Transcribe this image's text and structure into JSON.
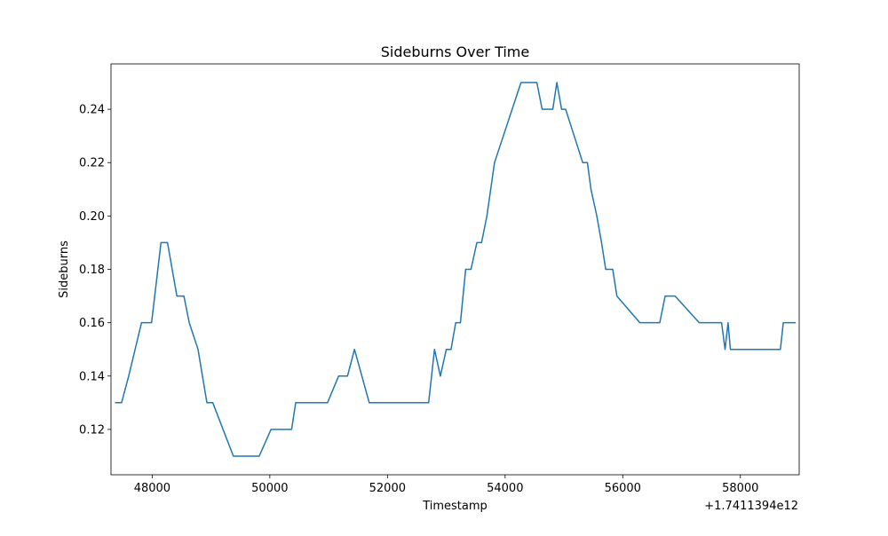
{
  "chart_data": {
    "type": "line",
    "title": "Sideburns Over Time",
    "xlabel": "Timestamp",
    "ylabel": "Sideburns",
    "x_offset_label": "+1.7411394e12",
    "xlim": [
      47300,
      59000
    ],
    "ylim": [
      0.103,
      0.257
    ],
    "x_ticks": [
      48000,
      50000,
      52000,
      54000,
      56000,
      58000
    ],
    "x_tick_labels": [
      "48000",
      "50000",
      "52000",
      "54000",
      "56000",
      "58000"
    ],
    "y_ticks": [
      0.12,
      0.14,
      0.16,
      0.18,
      0.2,
      0.22,
      0.24
    ],
    "y_tick_labels": [
      "0.12",
      "0.14",
      "0.16",
      "0.18",
      "0.20",
      "0.22",
      "0.24"
    ],
    "grid": false,
    "line_color": "#1f77b4",
    "series": [
      {
        "x": [
          47380,
          47480,
          47600,
          47820,
          47990,
          48150,
          48260,
          48420,
          48540,
          48630,
          48780,
          48930,
          49030,
          49380,
          49820,
          50020,
          50370,
          50440,
          50980,
          51170,
          51320,
          51440,
          51690,
          51730,
          52700,
          52800,
          52900,
          53000,
          53080,
          53160,
          53240,
          53330,
          53420,
          53520,
          53600,
          53690,
          53820,
          54270,
          54540,
          54630,
          54810,
          54880,
          54960,
          55030,
          55320,
          55400,
          55460,
          55560,
          55640,
          55710,
          55830,
          55900,
          56290,
          56630,
          56720,
          56890,
          57300,
          57680,
          57740,
          57790,
          57830,
          58680,
          58730,
          58930
        ],
        "y": [
          0.13,
          0.13,
          0.14,
          0.16,
          0.16,
          0.19,
          0.19,
          0.17,
          0.17,
          0.16,
          0.15,
          0.13,
          0.13,
          0.11,
          0.11,
          0.12,
          0.12,
          0.13,
          0.13,
          0.14,
          0.14,
          0.15,
          0.13,
          0.13,
          0.13,
          0.15,
          0.14,
          0.15,
          0.15,
          0.16,
          0.16,
          0.18,
          0.18,
          0.19,
          0.19,
          0.2,
          0.22,
          0.25,
          0.25,
          0.24,
          0.24,
          0.25,
          0.24,
          0.24,
          0.22,
          0.22,
          0.21,
          0.2,
          0.19,
          0.18,
          0.18,
          0.17,
          0.16,
          0.16,
          0.17,
          0.17,
          0.16,
          0.16,
          0.15,
          0.16,
          0.15,
          0.15,
          0.16,
          0.16
        ]
      }
    ]
  }
}
